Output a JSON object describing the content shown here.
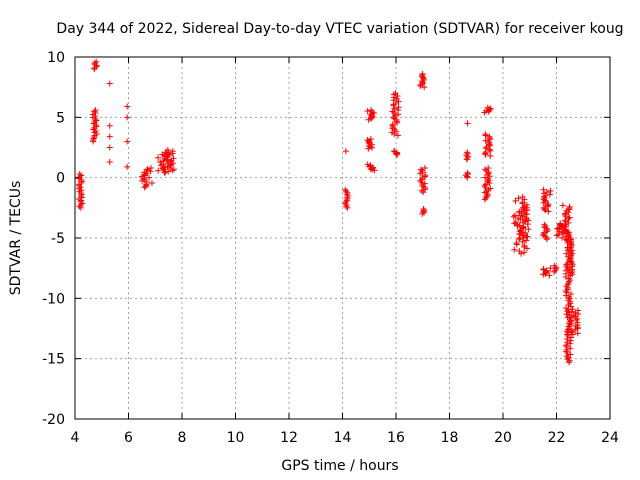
{
  "chart_data": {
    "type": "scatter",
    "title": "Day 344 of 2022, Sidereal Day-to-day VTEC variation (SDTVAR) for receiver koug",
    "xlabel": "GPS time / hours",
    "ylabel": "SDTVAR / TECUs",
    "xlim": [
      4,
      24
    ],
    "ylim": [
      -20,
      10
    ],
    "xticks": [
      "4",
      "6",
      "8",
      "10",
      "12",
      "14",
      "16",
      "18",
      "20",
      "22",
      "24"
    ],
    "yticks": [
      "10",
      "5",
      "0",
      "-5",
      "-10",
      "-15",
      "-20"
    ],
    "grid": true,
    "marker": "+",
    "series": [
      {
        "name": "SDTVAR",
        "color": "#ff0000",
        "segments": [
          {
            "x0": 4.12,
            "x1": 4.27,
            "y0": -2.5,
            "y1": 0.3
          },
          {
            "x0": 4.68,
            "x1": 4.82,
            "y0": 9.0,
            "y1": 9.6
          },
          {
            "x0": 4.65,
            "x1": 4.82,
            "y0": 3.0,
            "y1": 5.6
          },
          {
            "x0": 5.3,
            "x1": 5.3,
            "y0": 7.8,
            "y1": 7.8
          },
          {
            "x0": 5.3,
            "x1": 5.3,
            "y0": 4.3,
            "y1": 4.3
          },
          {
            "x0": 5.3,
            "x1": 5.3,
            "y0": 3.4,
            "y1": 3.4
          },
          {
            "x0": 5.3,
            "x1": 5.3,
            "y0": 2.5,
            "y1": 2.5
          },
          {
            "x0": 5.3,
            "x1": 5.3,
            "y0": 1.3,
            "y1": 1.3
          },
          {
            "x0": 5.95,
            "x1": 5.95,
            "y0": 5.9,
            "y1": 5.9
          },
          {
            "x0": 5.95,
            "x1": 5.95,
            "y0": 5.0,
            "y1": 5.0
          },
          {
            "x0": 5.95,
            "x1": 5.95,
            "y0": 3.0,
            "y1": 3.0
          },
          {
            "x0": 5.95,
            "x1": 5.95,
            "y0": 0.9,
            "y1": 0.9
          },
          {
            "x0": 6.5,
            "x1": 6.9,
            "y0": -0.8,
            "y1": 0.8
          },
          {
            "x0": 7.1,
            "x1": 7.5,
            "y0": 0.4,
            "y1": 2.1
          },
          {
            "x0": 7.4,
            "x1": 7.7,
            "y0": 0.5,
            "y1": 2.3
          },
          {
            "x0": 14.1,
            "x1": 14.15,
            "y0": 2.2,
            "y1": 2.2
          },
          {
            "x0": 14.1,
            "x1": 14.2,
            "y0": -2.5,
            "y1": -1.0
          },
          {
            "x0": 14.9,
            "x1": 15.2,
            "y0": 4.8,
            "y1": 5.6
          },
          {
            "x0": 14.9,
            "x1": 15.2,
            "y0": 2.4,
            "y1": 3.2
          },
          {
            "x0": 14.9,
            "x1": 15.2,
            "y0": 0.6,
            "y1": 1.1
          },
          {
            "x0": 15.85,
            "x1": 16.1,
            "y0": 3.5,
            "y1": 7.0
          },
          {
            "x0": 15.9,
            "x1": 16.1,
            "y0": 1.9,
            "y1": 2.2
          },
          {
            "x0": 16.9,
            "x1": 17.1,
            "y0": 7.5,
            "y1": 8.6
          },
          {
            "x0": 16.9,
            "x1": 17.1,
            "y0": -1.2,
            "y1": 0.8
          },
          {
            "x0": 16.95,
            "x1": 17.05,
            "y0": -3.0,
            "y1": -2.6
          },
          {
            "x0": 18.65,
            "x1": 18.7,
            "y0": 4.5,
            "y1": 4.5
          },
          {
            "x0": 18.6,
            "x1": 18.7,
            "y0": 1.5,
            "y1": 2.1
          },
          {
            "x0": 18.6,
            "x1": 18.7,
            "y0": 0.0,
            "y1": 0.4
          },
          {
            "x0": 19.3,
            "x1": 19.55,
            "y0": 5.4,
            "y1": 5.8
          },
          {
            "x0": 19.3,
            "x1": 19.55,
            "y0": 1.8,
            "y1": 3.6
          },
          {
            "x0": 19.3,
            "x1": 19.55,
            "y0": -1.8,
            "y1": 0.8
          },
          {
            "x0": 20.4,
            "x1": 20.9,
            "y0": -6.3,
            "y1": -1.6
          },
          {
            "x0": 20.6,
            "x1": 20.95,
            "y0": -5.0,
            "y1": -2.5
          },
          {
            "x0": 21.5,
            "x1": 21.8,
            "y0": -2.8,
            "y1": -1.0
          },
          {
            "x0": 21.5,
            "x1": 21.7,
            "y0": -5.1,
            "y1": -3.9
          },
          {
            "x0": 21.5,
            "x1": 21.8,
            "y0": -8.1,
            "y1": -7.5
          },
          {
            "x0": 21.9,
            "x1": 22.0,
            "y0": -7.8,
            "y1": -7.3
          },
          {
            "x0": 22.0,
            "x1": 22.3,
            "y0": -4.8,
            "y1": -3.8
          },
          {
            "x0": 22.2,
            "x1": 22.5,
            "y0": -5.2,
            "y1": -2.3
          },
          {
            "x0": 22.35,
            "x1": 22.55,
            "y0": -15.3,
            "y1": -4.5
          },
          {
            "x0": 22.5,
            "x1": 22.85,
            "y0": -13.0,
            "y1": -10.9
          },
          {
            "x0": 22.5,
            "x1": 22.6,
            "y0": -8.0,
            "y1": -5.0
          }
        ]
      }
    ]
  }
}
